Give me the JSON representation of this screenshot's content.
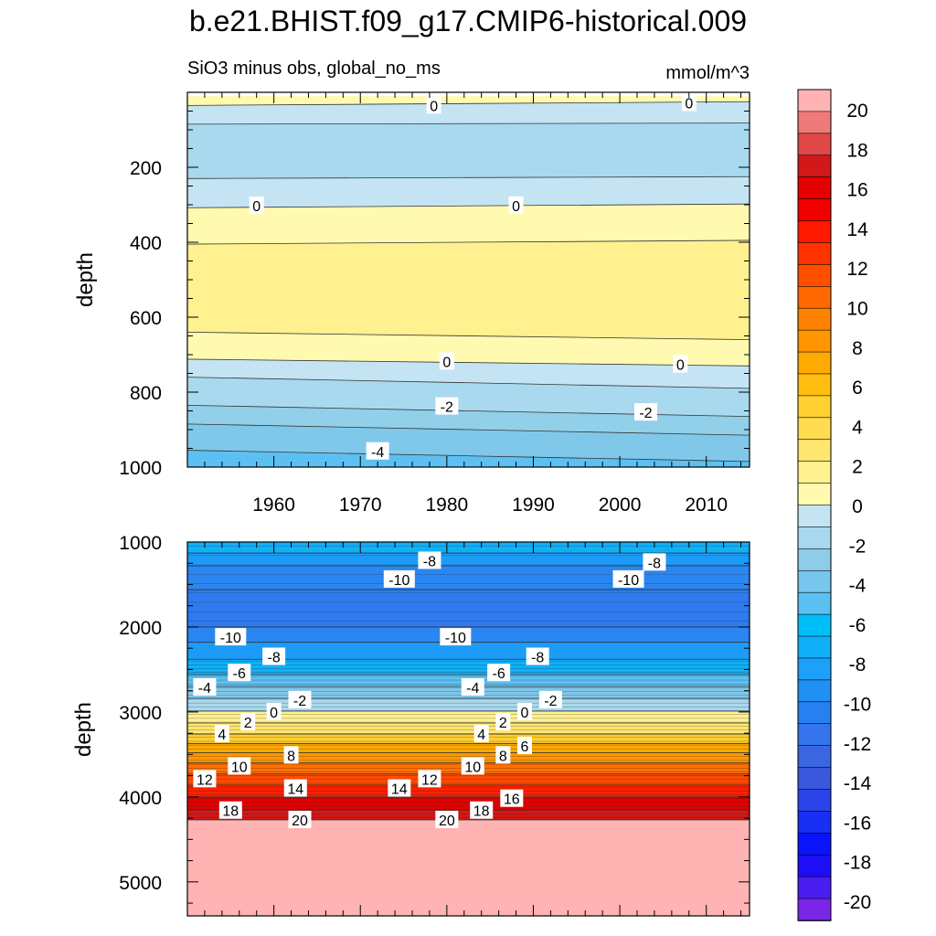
{
  "title": "b.e21.BHIST.f09_g17.CMIP6-historical.009",
  "chart_data": [
    {
      "type": "heatmap",
      "panel": "upper",
      "subtitle": "SiO3 minus obs, global_no_ms",
      "units": "mmol/m^3",
      "xlabel": "",
      "ylabel": "depth",
      "xlim": [
        1950,
        2015
      ],
      "ylim": [
        1000,
        0
      ],
      "xticks": [
        1960,
        1970,
        1980,
        1990,
        2000,
        2010
      ],
      "xtick_labels": [
        "1960",
        "1970",
        "1980",
        "1990",
        "2000",
        "2010"
      ],
      "yticks": [
        200,
        400,
        600,
        800,
        1000
      ],
      "ytick_labels": [
        "200",
        "400",
        "600",
        "800",
        "1000"
      ],
      "bands": [
        {
          "value": 0.5,
          "top": [
            10,
            10
          ],
          "bottom": [
            35,
            25
          ]
        },
        {
          "value": -0.5,
          "top": [
            35,
            25
          ],
          "bottom": [
            85,
            82
          ]
        },
        {
          "value": -1.5,
          "top": [
            85,
            82
          ],
          "bottom": [
            230,
            225
          ]
        },
        {
          "value": -0.5,
          "top": [
            230,
            225
          ],
          "bottom": [
            308,
            298
          ]
        },
        {
          "value": 0.5,
          "top": [
            308,
            298
          ],
          "bottom": [
            405,
            395
          ]
        },
        {
          "value": 1.5,
          "top": [
            405,
            395
          ],
          "bottom": [
            640,
            660
          ]
        },
        {
          "value": 0.5,
          "top": [
            640,
            660
          ],
          "bottom": [
            712,
            730
          ]
        },
        {
          "value": -0.5,
          "top": [
            712,
            730
          ],
          "bottom": [
            760,
            790
          ]
        },
        {
          "value": -1.5,
          "top": [
            760,
            790
          ],
          "bottom": [
            835,
            865
          ]
        },
        {
          "value": -2.5,
          "top": [
            835,
            865
          ],
          "bottom": [
            885,
            915
          ]
        },
        {
          "value": -3.5,
          "top": [
            885,
            915
          ],
          "bottom": [
            955,
            985
          ]
        },
        {
          "value": -4.5,
          "top": [
            955,
            985
          ],
          "bottom": [
            1000,
            1000
          ]
        }
      ],
      "contour_labels": [
        {
          "text": "0",
          "x": 1978.5,
          "y": 35
        },
        {
          "text": "0",
          "x": 2008,
          "y": 28
        },
        {
          "text": "0",
          "x": 1958,
          "y": 303
        },
        {
          "text": "0",
          "x": 1988,
          "y": 302
        },
        {
          "text": "0",
          "x": 1980,
          "y": 718
        },
        {
          "text": "0",
          "x": 2007,
          "y": 726
        },
        {
          "text": "-2",
          "x": 1980,
          "y": 838
        },
        {
          "text": "-2",
          "x": 2003,
          "y": 854
        },
        {
          "text": "-4",
          "x": 1972,
          "y": 958
        }
      ]
    },
    {
      "type": "heatmap",
      "panel": "lower",
      "xlabel": "",
      "ylabel": "depth",
      "xlim": [
        1950,
        2015
      ],
      "ylim": [
        5400,
        1000
      ],
      "yticks": [
        1000,
        2000,
        3000,
        4000,
        5000
      ],
      "ytick_labels": [
        "1000",
        "2000",
        "3000",
        "4000",
        "5000"
      ],
      "bands": [
        {
          "value": -7,
          "top": [
            1000,
            1000
          ],
          "bottom": [
            1130,
            1130
          ]
        },
        {
          "value": -9,
          "top": [
            1130,
            1130
          ],
          "bottom": [
            1280,
            1280
          ]
        },
        {
          "value": -11,
          "top": [
            1280,
            1280
          ],
          "bottom": [
            1560,
            1560
          ]
        },
        {
          "value": -13,
          "top": [
            1560,
            1560
          ],
          "bottom": [
            2000,
            2000
          ]
        },
        {
          "value": -11,
          "top": [
            2000,
            2000
          ],
          "bottom": [
            2180,
            2180
          ]
        },
        {
          "value": -9,
          "top": [
            2180,
            2180
          ],
          "bottom": [
            2380,
            2380
          ]
        },
        {
          "value": -7,
          "top": [
            2380,
            2380
          ],
          "bottom": [
            2560,
            2560
          ]
        },
        {
          "value": -5,
          "top": [
            2560,
            2560
          ],
          "bottom": [
            2700,
            2700
          ]
        },
        {
          "value": -3,
          "top": [
            2700,
            2700
          ],
          "bottom": [
            2840,
            2840
          ]
        },
        {
          "value": -1,
          "top": [
            2840,
            2840
          ],
          "bottom": [
            2990,
            2990
          ]
        },
        {
          "value": 1,
          "top": [
            2990,
            2990
          ],
          "bottom": [
            3130,
            3130
          ]
        },
        {
          "value": 3,
          "top": [
            3130,
            3130
          ],
          "bottom": [
            3260,
            3260
          ]
        },
        {
          "value": 5,
          "top": [
            3260,
            3260
          ],
          "bottom": [
            3370,
            3370
          ]
        },
        {
          "value": 7,
          "top": [
            3370,
            3370
          ],
          "bottom": [
            3480,
            3480
          ]
        },
        {
          "value": 9,
          "top": [
            3480,
            3480
          ],
          "bottom": [
            3600,
            3600
          ]
        },
        {
          "value": 11,
          "top": [
            3600,
            3600
          ],
          "bottom": [
            3730,
            3730
          ]
        },
        {
          "value": 13,
          "top": [
            3730,
            3730
          ],
          "bottom": [
            3860,
            3860
          ]
        },
        {
          "value": 15,
          "top": [
            3860,
            3860
          ],
          "bottom": [
            4000,
            4000
          ]
        },
        {
          "value": 17,
          "top": [
            4000,
            4000
          ],
          "bottom": [
            4150,
            4150
          ]
        },
        {
          "value": 19,
          "top": [
            4150,
            4150
          ],
          "bottom": [
            4270,
            4270
          ]
        },
        {
          "value": 21,
          "top": [
            4270,
            4270
          ],
          "bottom": [
            5400,
            5400
          ]
        }
      ],
      "contour_labels": [
        {
          "text": "-8",
          "x": 1978,
          "y": 1220
        },
        {
          "text": "-8",
          "x": 2004,
          "y": 1240
        },
        {
          "text": "-10",
          "x": 1974.5,
          "y": 1440
        },
        {
          "text": "-10",
          "x": 2001,
          "y": 1440
        },
        {
          "text": "-10",
          "x": 1955,
          "y": 2120
        },
        {
          "text": "-10",
          "x": 1981,
          "y": 2120
        },
        {
          "text": "-8",
          "x": 1960,
          "y": 2350
        },
        {
          "text": "-8",
          "x": 1990.5,
          "y": 2350
        },
        {
          "text": "-6",
          "x": 1956,
          "y": 2540
        },
        {
          "text": "-6",
          "x": 1986,
          "y": 2540
        },
        {
          "text": "-4",
          "x": 1952,
          "y": 2710
        },
        {
          "text": "-4",
          "x": 1983,
          "y": 2710
        },
        {
          "text": "-2",
          "x": 1963,
          "y": 2860
        },
        {
          "text": "-2",
          "x": 1992,
          "y": 2860
        },
        {
          "text": "0",
          "x": 1960,
          "y": 3000
        },
        {
          "text": "0",
          "x": 1989,
          "y": 3000
        },
        {
          "text": "2",
          "x": 1957,
          "y": 3120
        },
        {
          "text": "2",
          "x": 1986.5,
          "y": 3120
        },
        {
          "text": "4",
          "x": 1954,
          "y": 3260
        },
        {
          "text": "4",
          "x": 1984,
          "y": 3260
        },
        {
          "text": "6",
          "x": 1989,
          "y": 3400
        },
        {
          "text": "8",
          "x": 1962,
          "y": 3510
        },
        {
          "text": "8",
          "x": 1986.5,
          "y": 3510
        },
        {
          "text": "10",
          "x": 1956,
          "y": 3640
        },
        {
          "text": "10",
          "x": 1983,
          "y": 3640
        },
        {
          "text": "12",
          "x": 1952,
          "y": 3790
        },
        {
          "text": "12",
          "x": 1978,
          "y": 3790
        },
        {
          "text": "14",
          "x": 1962.5,
          "y": 3900
        },
        {
          "text": "14",
          "x": 1974.5,
          "y": 3900
        },
        {
          "text": "16",
          "x": 1987.5,
          "y": 4020
        },
        {
          "text": "18",
          "x": 1955,
          "y": 4160
        },
        {
          "text": "18",
          "x": 1984,
          "y": 4160
        },
        {
          "text": "20",
          "x": 1963,
          "y": 4270
        },
        {
          "text": "20",
          "x": 1980,
          "y": 4270
        }
      ]
    }
  ],
  "colorbar": {
    "labels": [
      "20",
      "18",
      "16",
      "14",
      "12",
      "10",
      "8",
      "6",
      "4",
      "2",
      "0",
      "-2",
      "-4",
      "-6",
      "-8",
      "-10",
      "-12",
      "-14",
      "-16",
      "-18",
      "-20"
    ],
    "colors": [
      "#ffb3b3",
      "#f07a7a",
      "#e04848",
      "#d21818",
      "#e40000",
      "#f20000",
      "#ff1a00",
      "#ff3300",
      "#ff5000",
      "#ff6a00",
      "#ff8200",
      "#ff9600",
      "#ffaa00",
      "#ffbe10",
      "#ffd030",
      "#ffdc50",
      "#ffe670",
      "#fff090",
      "#fffab0",
      "#c4e4f4",
      "#a8d8ee",
      "#8ecde8",
      "#78c6ee",
      "#5cc0f2",
      "#00bff8",
      "#10b0f8",
      "#1ca0f8",
      "#2090f4",
      "#2880f0",
      "#3474ec",
      "#3a66e2",
      "#3a58dc",
      "#2a44ea",
      "#1830f4",
      "#0a14fa",
      "#1e0ef6",
      "#4a1ef0",
      "#7a26e8"
    ]
  }
}
